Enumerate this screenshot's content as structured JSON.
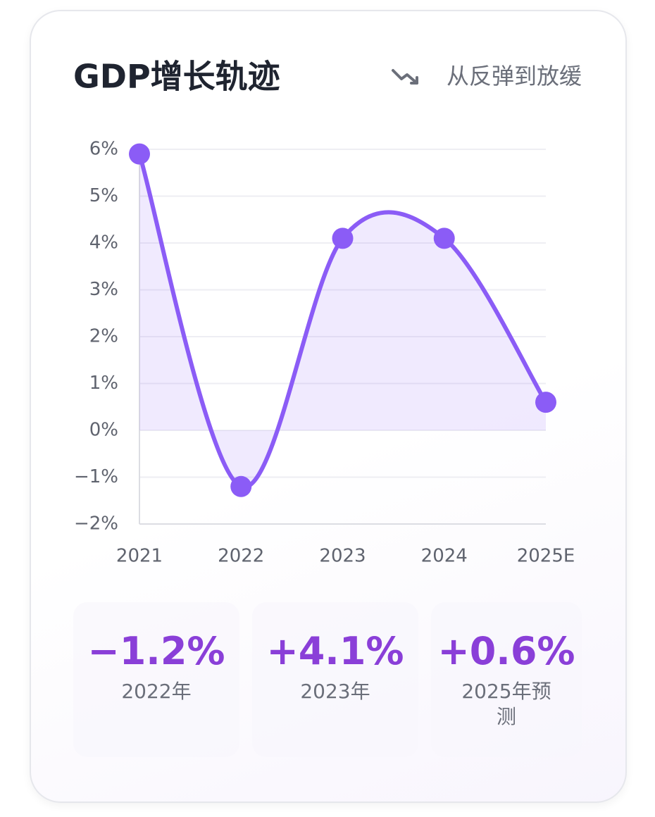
{
  "chart_data": {
    "type": "line",
    "title": "GDP增长轨迹",
    "subtitle": "从反弹到放缓",
    "categories": [
      "2021",
      "2022",
      "2023",
      "2024",
      "2025E"
    ],
    "values": [
      5.9,
      -1.2,
      4.1,
      4.1,
      0.6
    ],
    "color": "#8b5cf6",
    "area": true,
    "ylim": [
      -2,
      6
    ],
    "yticks": [
      {
        "value": -2,
        "label": "−2%"
      },
      {
        "value": -1,
        "label": "−1%"
      },
      {
        "value": 0,
        "label": "0%"
      },
      {
        "value": 1,
        "label": "1%"
      },
      {
        "value": 2,
        "label": "2%"
      },
      {
        "value": 3,
        "label": "3%"
      },
      {
        "value": 4,
        "label": "4%"
      },
      {
        "value": 5,
        "label": "5%"
      },
      {
        "value": 6,
        "label": "6%"
      }
    ],
    "grid": true
  },
  "highlights": [
    {
      "value": "−1.2%",
      "label": "2022年"
    },
    {
      "value": "+4.1%",
      "label": "2023年"
    },
    {
      "value": "+0.6%",
      "label": "2025年预测"
    }
  ]
}
